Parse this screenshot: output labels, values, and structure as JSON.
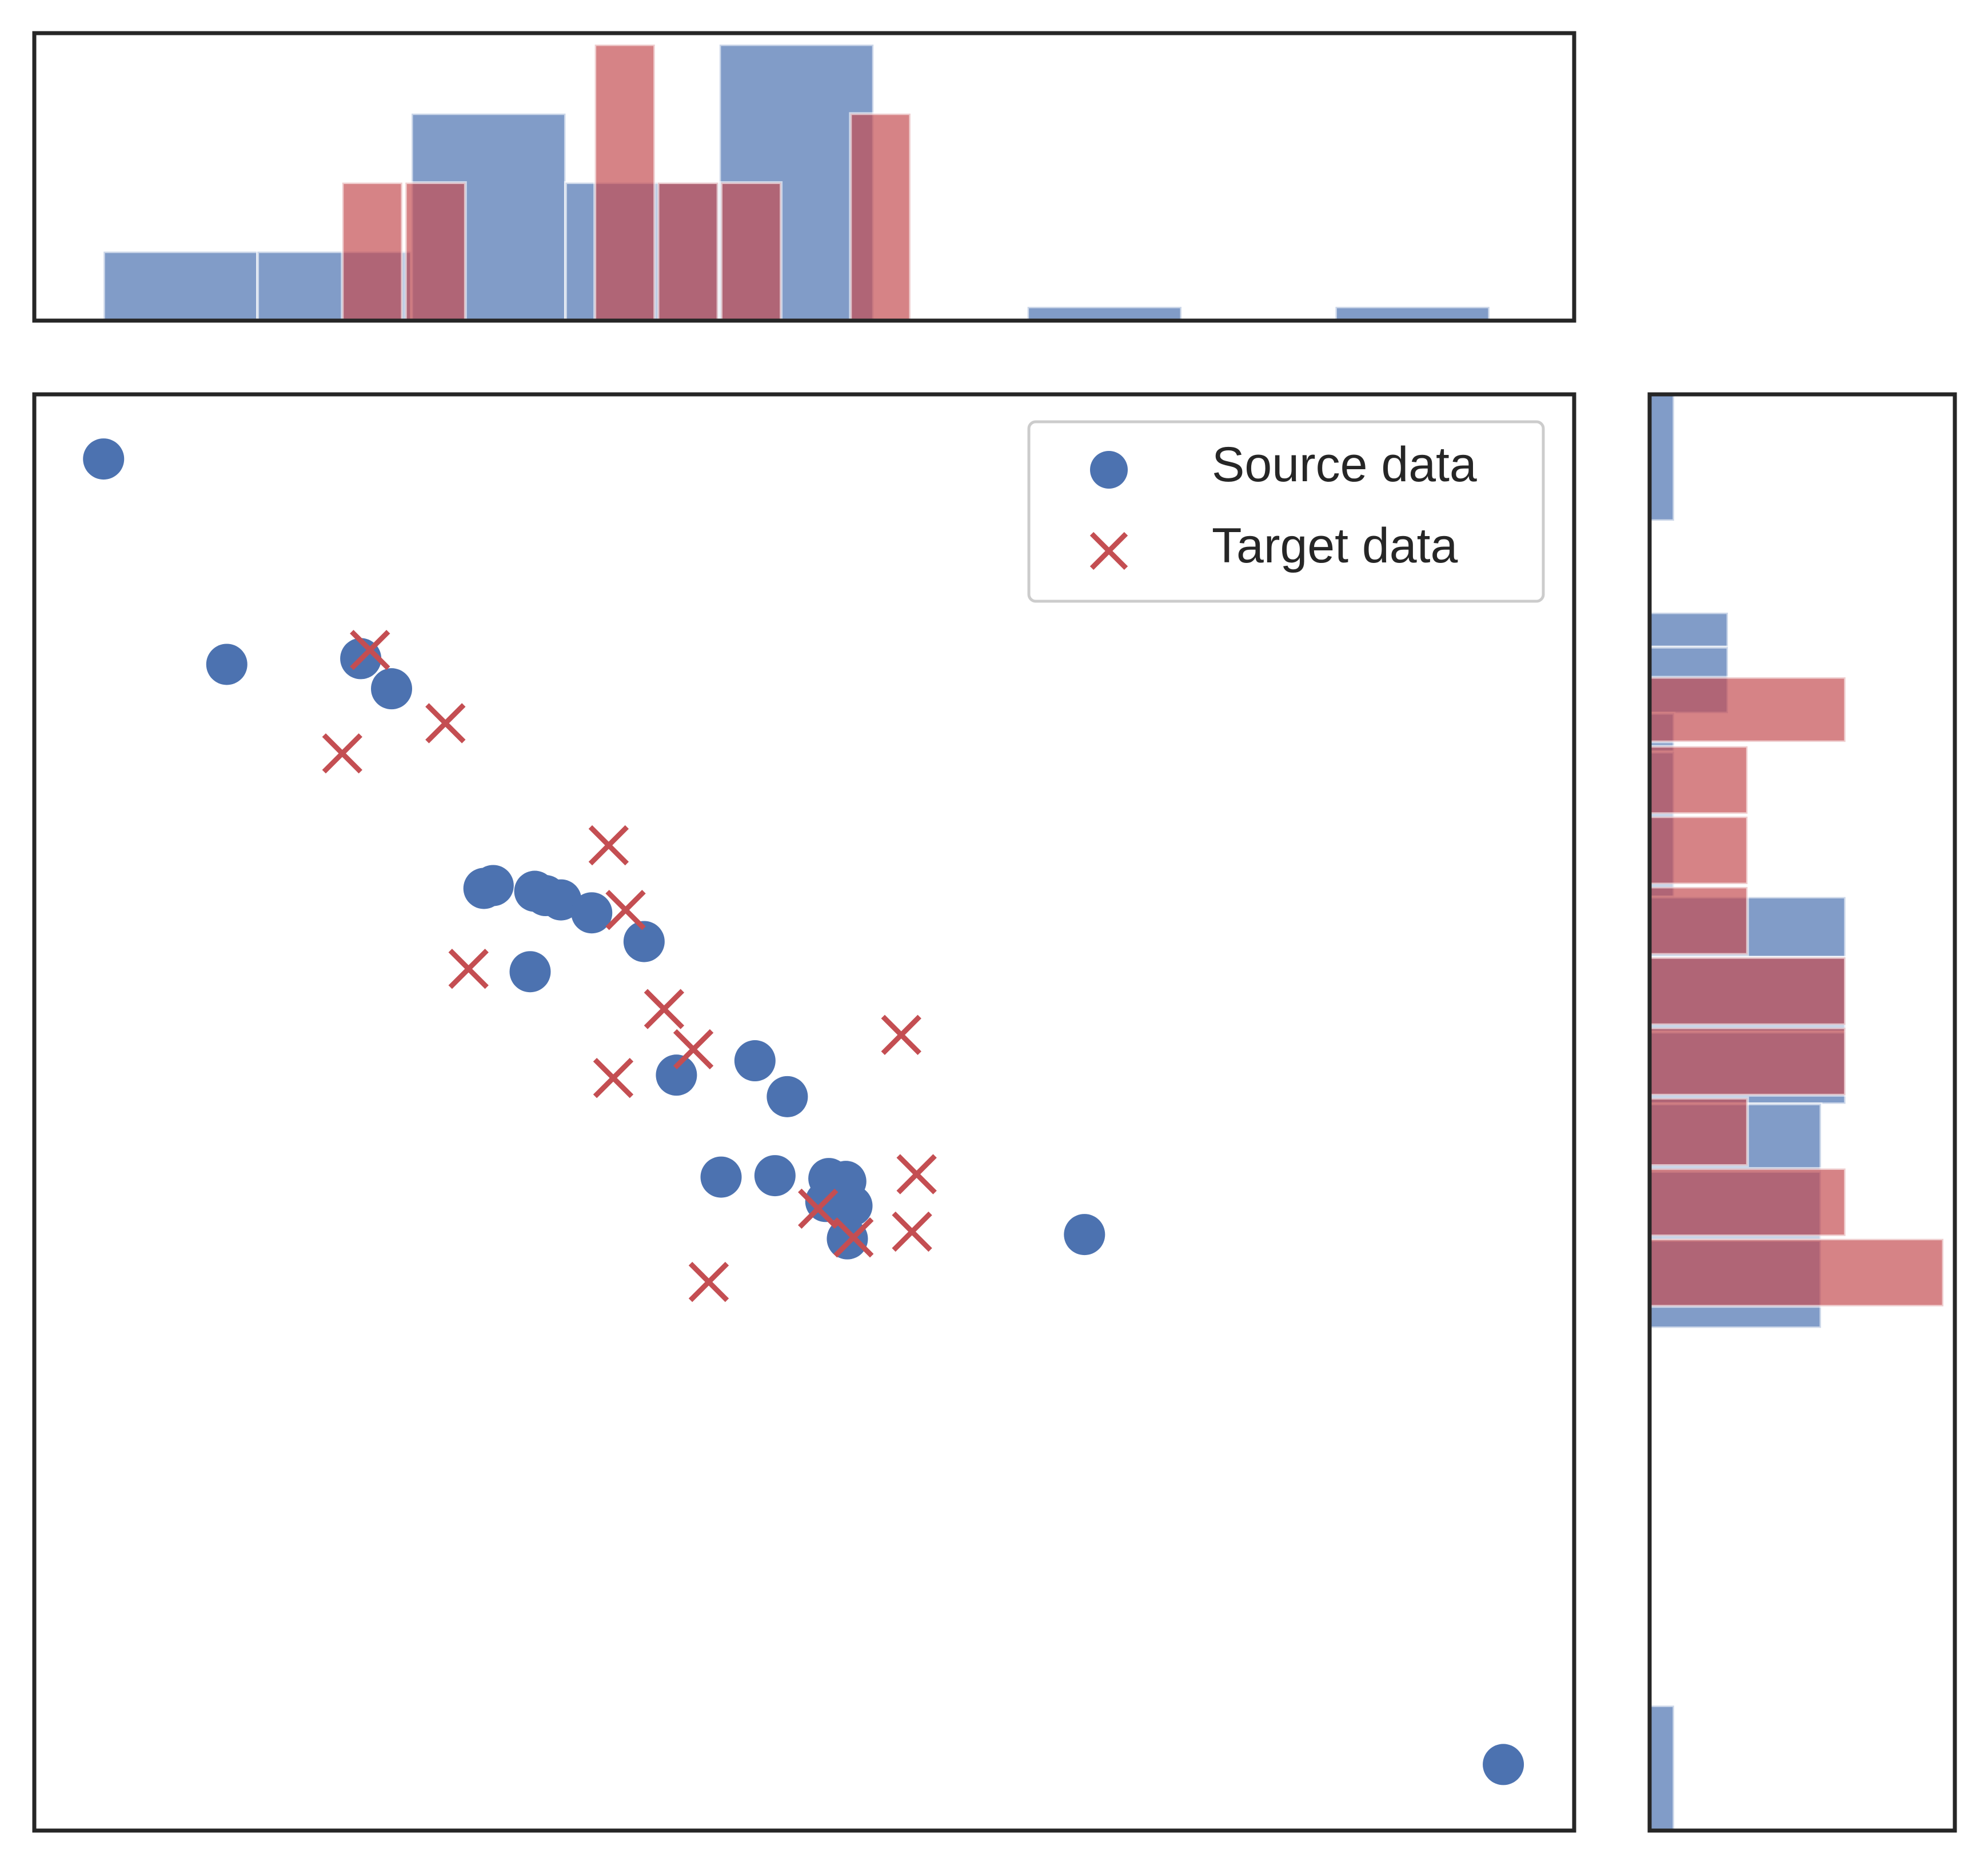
{
  "chart_data": {
    "type": "scatter",
    "title": "",
    "xlabel": "",
    "ylabel": "",
    "xlim": [
      0,
      100
    ],
    "ylim": [
      0,
      100
    ],
    "grid": false,
    "ticks_visible": false,
    "legend_position": "top-right",
    "legend": {
      "source_label": "Source data",
      "target_label": "Target data"
    },
    "colors": {
      "source": "#4c72b0",
      "target": "#c44e52",
      "frame": "#262626"
    },
    "series": [
      {
        "name": "Source data",
        "marker": "circle",
        "points": [
          [
            4.5,
            95.5
          ],
          [
            12.5,
            81.2
          ],
          [
            21.2,
            81.6
          ],
          [
            23.2,
            79.5
          ],
          [
            29.2,
            65.6
          ],
          [
            29.8,
            65.8
          ],
          [
            32.5,
            65.4
          ],
          [
            33.2,
            65.1
          ],
          [
            34.2,
            64.8
          ],
          [
            36.2,
            63.9
          ],
          [
            39.6,
            61.9
          ],
          [
            32.2,
            59.8
          ],
          [
            41.7,
            52.6
          ],
          [
            46.8,
            53.6
          ],
          [
            48.9,
            51.1
          ],
          [
            44.6,
            45.5
          ],
          [
            48.1,
            45.6
          ],
          [
            51.6,
            45.4
          ],
          [
            52.7,
            45.2
          ],
          [
            51.4,
            43.8
          ],
          [
            53.1,
            43.5
          ],
          [
            52.8,
            41.2
          ],
          [
            68.2,
            41.5
          ],
          [
            95.4,
            4.6
          ]
        ]
      },
      {
        "name": "Target data",
        "marker": "x",
        "points": [
          [
            21.8,
            82.2
          ],
          [
            26.7,
            77.1
          ],
          [
            20.0,
            75.0
          ],
          [
            37.3,
            68.6
          ],
          [
            38.4,
            64.1
          ],
          [
            28.2,
            60.0
          ],
          [
            40.9,
            57.2
          ],
          [
            42.8,
            54.4
          ],
          [
            37.6,
            52.4
          ],
          [
            56.3,
            55.4
          ],
          [
            57.3,
            45.7
          ],
          [
            50.9,
            43.3
          ],
          [
            53.2,
            41.3
          ],
          [
            57.0,
            41.7
          ],
          [
            43.8,
            38.2
          ]
        ]
      }
    ],
    "marginal_x": {
      "ylim": [
        0,
        4
      ],
      "source": {
        "bins": [
          [
            4.5,
            14.5,
            1
          ],
          [
            14.5,
            24.5,
            1
          ],
          [
            24.5,
            34.5,
            3
          ],
          [
            34.5,
            44.5,
            2
          ],
          [
            44.5,
            54.5,
            4
          ],
          [
            64.5,
            74.5,
            0.2
          ],
          [
            84.5,
            94.5,
            0.2
          ]
        ]
      },
      "target": {
        "bins": [
          [
            20.0,
            23.9,
            2
          ],
          [
            24.1,
            28.0,
            2
          ],
          [
            36.4,
            40.3,
            4
          ],
          [
            40.5,
            44.4,
            2
          ],
          [
            44.6,
            48.5,
            2
          ],
          [
            53.0,
            56.9,
            3
          ]
        ]
      }
    },
    "marginal_y": {
      "xlim": [
        0,
        3
      ],
      "source": {
        "bins": [
          [
            91.2,
            100,
            0.25
          ],
          [
            82.4,
            84.8,
            0.8
          ],
          [
            77.8,
            82.4,
            0.8
          ],
          [
            75.1,
            77.8,
            0.25
          ],
          [
            65.0,
            75.1,
            0.25
          ],
          [
            60.8,
            65.0,
            2
          ],
          [
            55.6,
            60.8,
            2
          ],
          [
            50.6,
            55.6,
            2
          ],
          [
            45.9,
            50.6,
            1.75
          ],
          [
            41.1,
            45.9,
            1.75
          ],
          [
            35.0,
            41.1,
            1.75
          ],
          [
            0,
            8.7,
            0.25
          ]
        ]
      },
      "target": {
        "bins": [
          [
            75.8,
            80.3,
            2
          ],
          [
            70.8,
            75.5,
            1
          ],
          [
            65.9,
            70.6,
            1
          ],
          [
            61.0,
            65.7,
            1
          ],
          [
            56.1,
            60.8,
            2
          ],
          [
            51.2,
            55.9,
            2
          ],
          [
            46.3,
            51.0,
            1
          ],
          [
            41.4,
            46.1,
            2
          ],
          [
            36.5,
            41.2,
            3
          ]
        ]
      }
    }
  }
}
